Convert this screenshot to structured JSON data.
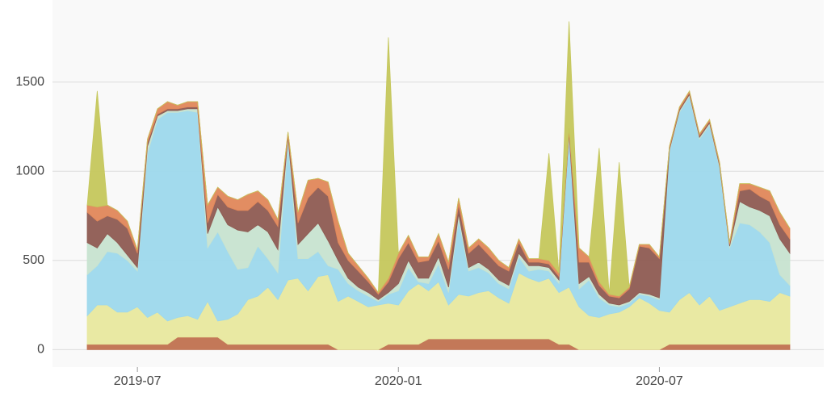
{
  "chart_data": {
    "type": "area",
    "stacked": true,
    "categories": [
      null,
      null,
      null,
      null,
      null,
      "2019-07",
      null,
      null,
      null,
      null,
      null,
      null,
      null,
      null,
      null,
      null,
      null,
      null,
      null,
      null,
      null,
      null,
      null,
      null,
      null,
      null,
      null,
      null,
      null,
      null,
      null,
      "2020-01",
      null,
      null,
      null,
      null,
      null,
      null,
      null,
      null,
      null,
      null,
      null,
      null,
      null,
      null,
      null,
      null,
      null,
      null,
      null,
      null,
      null,
      null,
      null,
      null,
      null,
      "2020-07",
      null,
      null,
      null,
      null,
      null,
      null,
      null,
      null,
      null,
      null,
      null,
      null,
      null
    ],
    "ylim": [
      -80,
      1960
    ],
    "yticks": [
      0,
      500,
      1000,
      1500
    ],
    "grid": true,
    "series": [
      {
        "color": "#c0714f",
        "values": [
          30,
          30,
          30,
          30,
          30,
          30,
          30,
          30,
          30,
          70,
          70,
          70,
          70,
          70,
          30,
          30,
          30,
          30,
          30,
          30,
          30,
          30,
          30,
          30,
          30,
          0,
          0,
          0,
          0,
          0,
          30,
          30,
          30,
          30,
          60,
          60,
          60,
          60,
          60,
          60,
          60,
          60,
          60,
          60,
          60,
          60,
          60,
          30,
          30,
          0,
          0,
          0,
          0,
          0,
          0,
          0,
          0,
          0,
          30,
          30,
          30,
          30,
          30,
          30,
          30,
          30,
          30,
          30,
          30,
          30,
          30
        ]
      },
      {
        "color": "#e8e89e",
        "values": [
          160,
          220,
          220,
          180,
          180,
          210,
          150,
          180,
          130,
          110,
          120,
          100,
          200,
          90,
          140,
          170,
          250,
          270,
          320,
          250,
          360,
          370,
          300,
          380,
          390,
          270,
          300,
          270,
          240,
          250,
          230,
          220,
          300,
          340,
          270,
          320,
          190,
          250,
          240,
          260,
          270,
          230,
          200,
          370,
          340,
          320,
          340,
          290,
          320,
          240,
          190,
          180,
          200,
          210,
          240,
          290,
          260,
          220,
          180,
          250,
          290,
          220,
          270,
          190,
          210,
          230,
          250,
          250,
          240,
          290,
          270
        ]
      },
      {
        "color": "#9dd8ec",
        "values": [
          230,
          220,
          300,
          330,
          290,
          200,
          920,
          1080,
          1170,
          1150,
          1150,
          1160,
          300,
          500,
          380,
          250,
          180,
          280,
          160,
          150,
          780,
          110,
          180,
          140,
          50,
          180,
          70,
          60,
          60,
          20,
          50,
          80,
          130,
          10,
          40,
          100,
          70,
          420,
          140,
          140,
          100,
          80,
          80,
          90,
          40,
          70,
          40,
          50,
          850,
          100,
          200,
          110,
          50,
          30,
          20,
          20,
          40,
          60,
          900,
          1050,
          1100,
          930,
          960,
          800,
          330,
          450,
          420,
          380,
          330,
          100,
          60
        ]
      },
      {
        "color": "#c7e3d0",
        "values": [
          180,
          100,
          100,
          60,
          30,
          20,
          40,
          20,
          10,
          10,
          10,
          20,
          80,
          140,
          150,
          220,
          200,
          120,
          150,
          130,
          20,
          80,
          140,
          160,
          140,
          50,
          30,
          20,
          20,
          10,
          10,
          40,
          40,
          20,
          30,
          40,
          30,
          30,
          20,
          30,
          20,
          20,
          20,
          20,
          30,
          20,
          20,
          20,
          10,
          30,
          20,
          20,
          10,
          10,
          10,
          10,
          10,
          10,
          10,
          10,
          10,
          10,
          10,
          10,
          10,
          120,
          100,
          120,
          150,
          200,
          180
        ]
      },
      {
        "color": "#8e5b52",
        "values": [
          170,
          150,
          100,
          130,
          150,
          80,
          20,
          10,
          10,
          10,
          10,
          10,
          60,
          70,
          100,
          110,
          120,
          130,
          120,
          130,
          10,
          120,
          200,
          200,
          250,
          100,
          100,
          90,
          60,
          30,
          60,
          140,
          100,
          90,
          100,
          90,
          100,
          50,
          80,
          100,
          80,
          80,
          80,
          60,
          20,
          20,
          20,
          20,
          10,
          120,
          80,
          50,
          40,
          40,
          70,
          260,
          260,
          220,
          10,
          10,
          10,
          10,
          10,
          10,
          10,
          60,
          100,
          80,
          80,
          80,
          80
        ]
      },
      {
        "color": "#e0875a",
        "values": [
          40,
          80,
          60,
          50,
          40,
          20,
          20,
          30,
          40,
          20,
          30,
          30,
          100,
          40,
          60,
          60,
          90,
          60,
          60,
          40,
          20,
          60,
          100,
          50,
          80,
          120,
          40,
          30,
          20,
          10,
          20,
          30,
          40,
          30,
          20,
          40,
          40,
          40,
          30,
          30,
          40,
          30,
          20,
          20,
          20,
          20,
          20,
          20,
          20,
          80,
          30,
          20,
          10,
          10,
          10,
          10,
          20,
          10,
          10,
          10,
          10,
          10,
          10,
          10,
          10,
          40,
          30,
          50,
          60,
          70,
          60
        ]
      },
      {
        "color": "#c5c75c",
        "values": [
          0,
          650,
          0,
          0,
          0,
          0,
          0,
          0,
          0,
          0,
          0,
          0,
          0,
          0,
          0,
          0,
          0,
          0,
          0,
          0,
          0,
          0,
          0,
          0,
          0,
          0,
          0,
          0,
          0,
          0,
          1350,
          0,
          0,
          0,
          0,
          0,
          0,
          0,
          0,
          0,
          0,
          0,
          0,
          0,
          0,
          0,
          600,
          0,
          600,
          0,
          0,
          750,
          0,
          750,
          0,
          0,
          0,
          0,
          0,
          0,
          0,
          0,
          0,
          0,
          0,
          0,
          0,
          0,
          0,
          0,
          0
        ]
      }
    ]
  }
}
